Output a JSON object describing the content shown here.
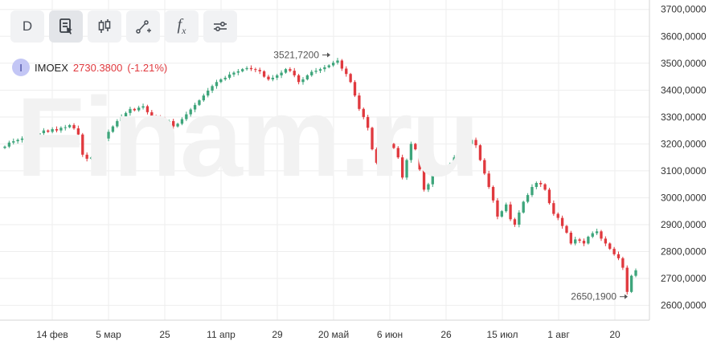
{
  "toolbar": {
    "period_label": "D",
    "fx_label": "f",
    "fx_sub": "x"
  },
  "legend": {
    "symbol_initial": "I",
    "symbol": "IMOEX",
    "price": "2730.3800",
    "change": "(-1.21%)"
  },
  "watermark": "Finam.ru",
  "colors": {
    "up": "#3ea57b",
    "down": "#e0393e",
    "grid": "#eeeeee",
    "axis_text": "#333333"
  },
  "chart_data": {
    "type": "candlestick",
    "x_ticks": [
      "14 фев",
      "5 мар",
      "25",
      "11 апр",
      "29",
      "20 май",
      "6 июн",
      "26",
      "15 июл",
      "1 авг",
      "20"
    ],
    "y_ticks": [
      "3700,0000",
      "3600,0000",
      "3500,0000",
      "3400,0000",
      "3300,0000",
      "3200,0000",
      "3100,0000",
      "3000,0000",
      "2900,0000",
      "2800,0000",
      "2700,0000",
      "2600,0000"
    ],
    "ylim": [
      2545,
      3735
    ],
    "annotations": [
      {
        "text": "3521,7200",
        "value": 3521.72
      },
      {
        "text": "2650,1900",
        "value": 2650.19
      }
    ],
    "closes": [
      3190,
      3205,
      3210,
      3215,
      3220,
      3230,
      3225,
      3235,
      3240,
      3250,
      3245,
      3255,
      3250,
      3260,
      3262,
      3270,
      3258,
      3235,
      3160,
      3145,
      3150,
      3175,
      3195,
      3220,
      3245,
      3265,
      3285,
      3300,
      3315,
      3330,
      3325,
      3335,
      3340,
      3318,
      3305,
      3300,
      3290,
      3285,
      3285,
      3265,
      3275,
      3292,
      3310,
      3328,
      3345,
      3362,
      3380,
      3398,
      3415,
      3430,
      3440,
      3446,
      3458,
      3465,
      3470,
      3478,
      3482,
      3478,
      3475,
      3470,
      3450,
      3440,
      3446,
      3455,
      3465,
      3478,
      3472,
      3455,
      3430,
      3440,
      3455,
      3468,
      3472,
      3478,
      3485,
      3492,
      3502,
      3510,
      3480,
      3460,
      3430,
      3380,
      3330,
      3300,
      3260,
      3180,
      3130,
      3175,
      3210,
      3200,
      3185,
      3150,
      3075,
      3140,
      3200,
      3180,
      3105,
      3030,
      3050,
      3085,
      3115,
      3110,
      3105,
      3125,
      3150,
      3160,
      3175,
      3200,
      3215,
      3195,
      3140,
      3090,
      3040,
      2990,
      2930,
      2950,
      2975,
      2920,
      2900,
      2945,
      2985,
      3010,
      3040,
      3055,
      3050,
      3030,
      2980,
      2940,
      2925,
      2895,
      2870,
      2830,
      2845,
      2840,
      2830,
      2855,
      2868,
      2875,
      2848,
      2830,
      2810,
      2790,
      2775,
      2740,
      2650,
      2710,
      2730
    ]
  }
}
